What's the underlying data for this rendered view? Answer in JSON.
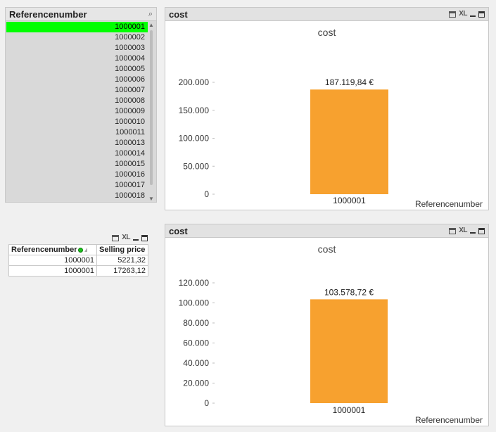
{
  "listbox": {
    "title": "Referencenumber",
    "items": [
      "1000001",
      "1000002",
      "1000003",
      "1000004",
      "1000005",
      "1000006",
      "1000007",
      "1000008",
      "1000009",
      "1000010",
      "1000011",
      "1000013",
      "1000014",
      "1000015",
      "1000016",
      "1000017",
      "1000018"
    ],
    "selected_index": 0,
    "selected_color": "#00ff00"
  },
  "table": {
    "columns": [
      "Referencenumber",
      "Selling price"
    ],
    "rows": [
      [
        "1000001",
        "5221,32"
      ],
      [
        "1000001",
        "17263,12"
      ]
    ],
    "xl_label": "XL"
  },
  "charts": {
    "xl_label": "XL",
    "bar_color": "#f7a12f"
  },
  "chart_data": [
    {
      "type": "bar",
      "caption": "cost",
      "title": "cost",
      "xlabel": "Referencenumber",
      "ylabel": "",
      "categories": [
        "1000001"
      ],
      "values": [
        187119.84
      ],
      "data_labels": [
        "187.119,84 €"
      ],
      "ylim": [
        0,
        200000
      ],
      "yticks": [
        0,
        50000,
        100000,
        150000,
        200000
      ],
      "ytick_labels": [
        "0",
        "50.000",
        "100.000",
        "150.000",
        "200.000"
      ],
      "grid": false
    },
    {
      "type": "bar",
      "caption": "cost",
      "title": "cost",
      "xlabel": "Referencenumber",
      "ylabel": "",
      "categories": [
        "1000001"
      ],
      "values": [
        103578.72
      ],
      "data_labels": [
        "103.578,72 €"
      ],
      "ylim": [
        0,
        120000
      ],
      "yticks": [
        0,
        20000,
        40000,
        60000,
        80000,
        100000,
        120000
      ],
      "ytick_labels": [
        "0",
        "20.000",
        "40.000",
        "60.000",
        "80.000",
        "100.000",
        "120.000"
      ],
      "grid": false
    }
  ]
}
